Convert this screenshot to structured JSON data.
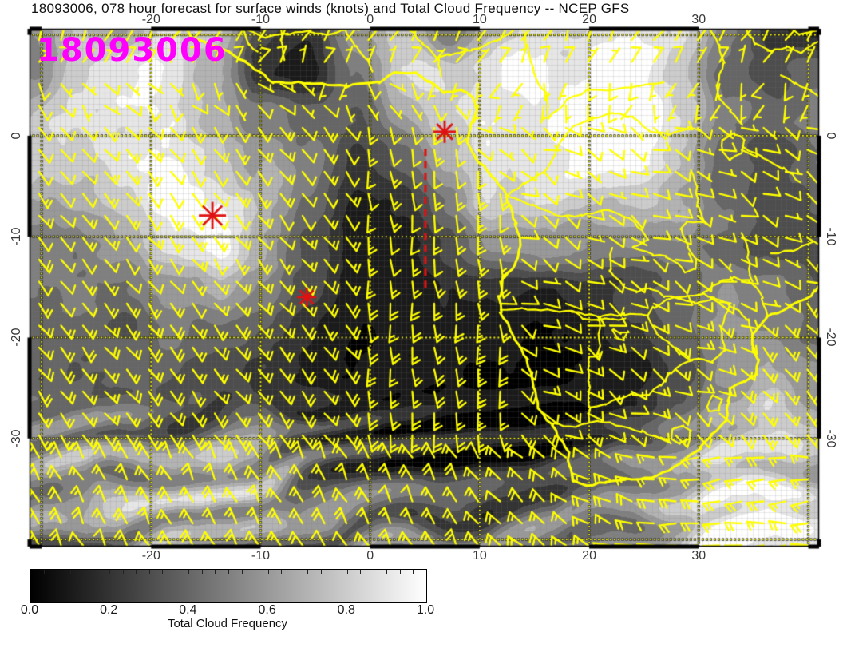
{
  "title": {
    "text": "18093006, 078 hour forecast for surface winds (knots) and Total Cloud Frequency -- NCEP GFS"
  },
  "map_overlay": {
    "run_label": "18093006",
    "color": "#ff00ff"
  },
  "axes": {
    "lon_tick_labels": [
      "-20",
      "-10",
      "0",
      "10",
      "20",
      "30"
    ],
    "lon_tick_values": [
      -20,
      -10,
      0,
      10,
      20,
      30
    ],
    "lat_tick_labels": [
      "0",
      "-10",
      "-20",
      "-30"
    ],
    "lat_tick_values": [
      0,
      -10,
      -20,
      -30
    ],
    "lon_range": [
      -31.1,
      41.0
    ],
    "lat_range": [
      -40.7,
      10.6
    ],
    "grid_interval_deg": 10
  },
  "colorbar": {
    "label": "Total Cloud Frequency",
    "tick_labels": [
      "0.0",
      "0.2",
      "0.4",
      "0.6",
      "0.8",
      "1.0"
    ],
    "tick_values": [
      0,
      0.2,
      0.4,
      0.6,
      0.8,
      1.0
    ],
    "min": 0.0,
    "max": 1.0
  },
  "annotations": {
    "color": "#e01212",
    "asterisks": [
      {
        "lon": 6.8,
        "lat": 0.4,
        "size": 14
      },
      {
        "lon": -14.4,
        "lat": -7.9,
        "size": 17
      },
      {
        "lon": -5.8,
        "lat": -16.0,
        "size": 12
      }
    ],
    "dashed_line": {
      "lon": 5.05,
      "lat_start": -1.3,
      "lat_end": -15.2
    }
  },
  "colors": {
    "wind_barbs": "#ffff00",
    "coastlines": "#ffff00",
    "graticule": "#ffff00",
    "timestamp": "#ff00ff",
    "annotation": "#e01212",
    "frame": "#000000"
  },
  "chart_data": {
    "type": "heatmap",
    "title": "18093006, 078 hour forecast for surface winds (knots) and Total Cloud Frequency -- NCEP GFS",
    "field": "Total Cloud Frequency",
    "overlay": "surface wind barbs (knots)",
    "model": "NCEP GFS",
    "run": "18093006",
    "forecast_hour": 78,
    "colorscale": {
      "min": 0.0,
      "max": 1.0,
      "black": 0.0,
      "white": 1.0
    },
    "lon_axis_ticks": [
      -20,
      -10,
      0,
      10,
      20,
      30
    ],
    "lat_axis_ticks": [
      0,
      -10,
      -20,
      -30
    ],
    "lon_grid_centers": [
      -29,
      -25,
      -21,
      -17,
      -13,
      -9,
      -5,
      -1,
      3,
      7,
      11,
      15,
      19,
      23,
      27,
      31,
      35,
      39
    ],
    "lat_grid_centers": [
      8.4,
      4.4,
      0.4,
      -3.6,
      -7.6,
      -11.6,
      -15.6,
      -19.6,
      -23.6,
      -27.6,
      -31.6,
      -35.6,
      -39.6
    ],
    "cloud_frequency_grid": [
      [
        0.55,
        0.7,
        0.5,
        0.75,
        0.8,
        0.3,
        0.15,
        0.55,
        0.7,
        0.4,
        0.75,
        0.9,
        0.85,
        0.8,
        0.9,
        0.5,
        0.25,
        0.15
      ],
      [
        0.6,
        0.75,
        0.8,
        0.85,
        0.7,
        0.25,
        0.1,
        0.45,
        0.75,
        0.7,
        0.9,
        0.95,
        0.9,
        0.85,
        0.7,
        0.35,
        0.4,
        0.5
      ],
      [
        0.7,
        0.8,
        0.85,
        0.9,
        0.75,
        0.55,
        0.35,
        0.3,
        0.6,
        0.75,
        0.9,
        0.95,
        0.95,
        0.9,
        0.8,
        0.6,
        0.45,
        0.55
      ],
      [
        0.65,
        0.75,
        0.85,
        0.9,
        0.85,
        0.65,
        0.4,
        0.15,
        0.4,
        0.75,
        0.9,
        0.9,
        0.85,
        0.9,
        0.75,
        0.5,
        0.35,
        0.45
      ],
      [
        0.6,
        0.7,
        0.8,
        0.95,
        0.9,
        0.7,
        0.35,
        0.1,
        0.2,
        0.55,
        0.85,
        0.9,
        0.8,
        0.7,
        0.6,
        0.45,
        0.3,
        0.35
      ],
      [
        0.55,
        0.6,
        0.7,
        0.85,
        0.8,
        0.6,
        0.3,
        0.1,
        0.15,
        0.3,
        0.6,
        0.7,
        0.6,
        0.55,
        0.5,
        0.35,
        0.25,
        0.3
      ],
      [
        0.5,
        0.55,
        0.5,
        0.6,
        0.55,
        0.45,
        0.25,
        0.08,
        0.1,
        0.15,
        0.2,
        0.2,
        0.25,
        0.3,
        0.4,
        0.5,
        0.45,
        0.4
      ],
      [
        0.45,
        0.4,
        0.35,
        0.45,
        0.4,
        0.35,
        0.2,
        0.07,
        0.08,
        0.15,
        0.15,
        0.1,
        0.12,
        0.2,
        0.35,
        0.55,
        0.5,
        0.45
      ],
      [
        0.4,
        0.35,
        0.3,
        0.35,
        0.3,
        0.3,
        0.2,
        0.1,
        0.1,
        0.1,
        0.08,
        0.06,
        0.08,
        0.12,
        0.3,
        0.6,
        0.7,
        0.6
      ],
      [
        0.45,
        0.4,
        0.35,
        0.3,
        0.35,
        0.4,
        0.3,
        0.2,
        0.15,
        0.1,
        0.07,
        0.06,
        0.1,
        0.15,
        0.4,
        0.7,
        0.8,
        0.7
      ],
      [
        0.5,
        0.55,
        0.5,
        0.55,
        0.6,
        0.55,
        0.45,
        0.35,
        0.3,
        0.2,
        0.15,
        0.2,
        0.3,
        0.4,
        0.55,
        0.75,
        0.85,
        0.8
      ],
      [
        0.55,
        0.6,
        0.65,
        0.7,
        0.75,
        0.7,
        0.6,
        0.55,
        0.5,
        0.45,
        0.4,
        0.45,
        0.5,
        0.55,
        0.65,
        0.8,
        0.9,
        0.85
      ],
      [
        0.5,
        0.55,
        0.6,
        0.7,
        0.65,
        0.6,
        0.55,
        0.6,
        0.55,
        0.5,
        0.45,
        0.5,
        0.55,
        0.6,
        0.7,
        0.85,
        0.9,
        0.9
      ]
    ]
  }
}
